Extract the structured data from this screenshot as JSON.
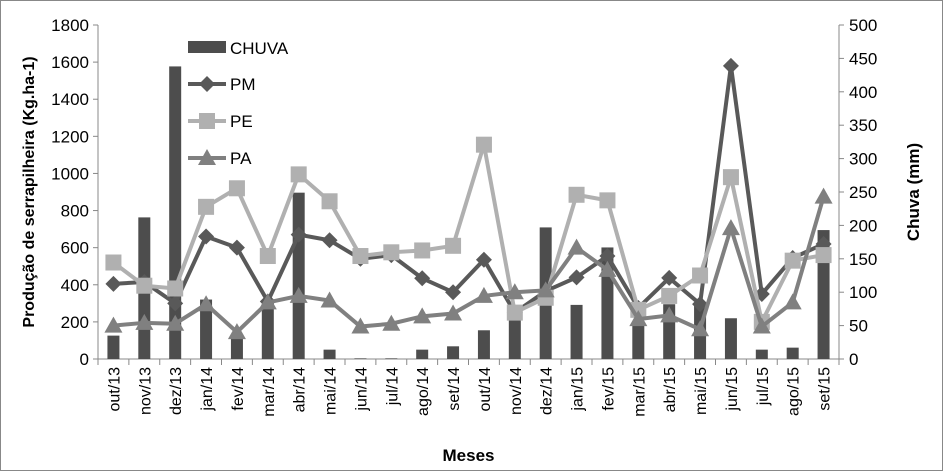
{
  "chart_data": {
    "type": "bar+line",
    "xlabel": "Meses",
    "ylabel": "Produção de serrapilheira  (Kg.ha-1)",
    "y2label": "Chuva (mm)",
    "ylim": [
      0,
      1800
    ],
    "y2lim": [
      0,
      500
    ],
    "yticks": [
      0,
      200,
      400,
      600,
      800,
      1000,
      1200,
      1400,
      1600,
      1800
    ],
    "y2ticks": [
      0,
      50,
      100,
      150,
      200,
      250,
      300,
      350,
      400,
      450,
      500
    ],
    "categories": [
      "out/13",
      "nov/13",
      "dez/13",
      "jan/14",
      "fev/14",
      "mar/14",
      "abr/14",
      "mai/14",
      "jun/14",
      "jul/14",
      "ago/14",
      "set/14",
      "out/14",
      "nov/14",
      "dez/14",
      "jan/15",
      "fev/15",
      "mar/15",
      "abr/15",
      "mai/15",
      "jun/15",
      "jul/15",
      "ago/15",
      "set/15"
    ],
    "legend_position": "top-left",
    "bars": {
      "name": "CHUVA",
      "axis": "right",
      "color": "#4d4d4d",
      "values": [
        35,
        212,
        438,
        89,
        33,
        83,
        249,
        14,
        1,
        1,
        14,
        19,
        43,
        67,
        197,
        81,
        167,
        52,
        82,
        80,
        61,
        14,
        17,
        193
      ]
    },
    "series": [
      {
        "name": "PM",
        "marker": "diamond",
        "color": "#595959",
        "values": [
          405,
          415,
          300,
          660,
          600,
          310,
          670,
          640,
          540,
          560,
          435,
          360,
          535,
          250,
          366,
          440,
          555,
          275,
          437,
          296,
          1580,
          350,
          544,
          620
        ]
      },
      {
        "name": "PE",
        "marker": "square",
        "color": "#b0b0b0",
        "values": [
          520,
          395,
          380,
          820,
          920,
          555,
          995,
          850,
          555,
          575,
          585,
          610,
          1155,
          250,
          330,
          885,
          855,
          265,
          340,
          450,
          980,
          200,
          530,
          560
        ]
      },
      {
        "name": "PA",
        "marker": "triangle",
        "color": "#808080",
        "values": [
          180,
          195,
          190,
          295,
          145,
          305,
          340,
          315,
          175,
          190,
          230,
          245,
          340,
          360,
          370,
          600,
          480,
          215,
          235,
          160,
          705,
          175,
          305,
          875
        ]
      }
    ]
  }
}
